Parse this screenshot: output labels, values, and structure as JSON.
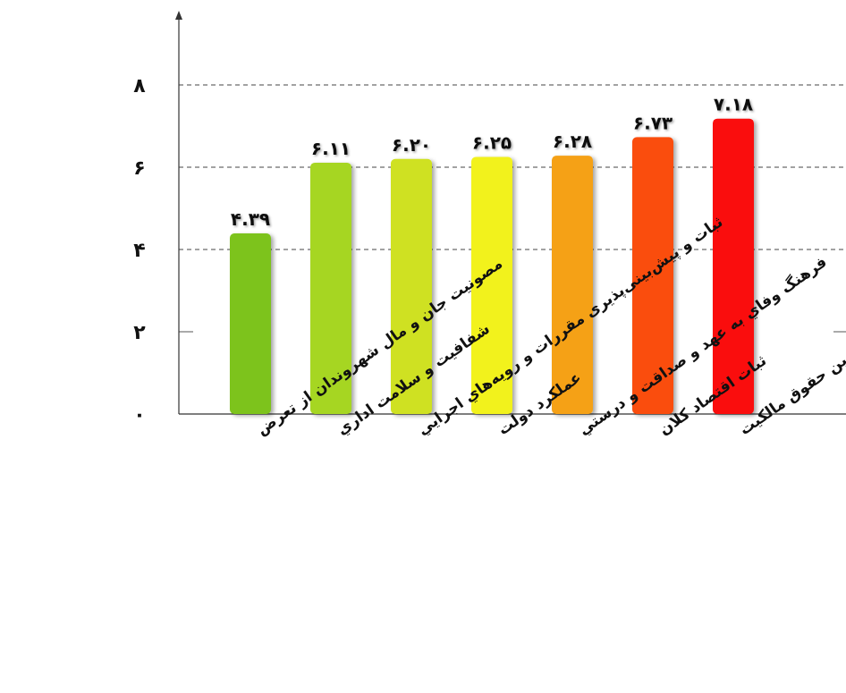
{
  "chart_data": {
    "type": "bar",
    "categories": [
      "مصونیت جان و مال شهروندان از تعرض",
      "شفافیت و سلامت اداري",
      "ثبات و پیش‌بینی‌پذیری مقررات و رویه‌هاي اجرایي",
      "عملکرد دولت",
      "فرهنگ وفاي به عهد و صداقت و درستي",
      "ثبات اقتصاد کلان",
      "تعریف و تضمین حقوق مالکیت"
    ],
    "values": [
      4.39,
      6.11,
      6.2,
      6.25,
      6.28,
      6.73,
      7.18
    ],
    "data_labels": [
      "۴.۳۹",
      "۶.۱۱",
      "۶.۲۰",
      "۶.۲۵",
      "۶.۲۸",
      "۶.۷۳",
      "۷.۱۸"
    ],
    "colors": [
      "#7dc31f",
      "#a6d620",
      "#cfe120",
      "#f2f21f",
      "#f5a114",
      "#fa4e10",
      "#fa0c0c"
    ],
    "y_ticks": [
      0,
      2,
      4,
      6,
      8
    ],
    "y_tick_labels": [
      "۰",
      "۲",
      "۴",
      "۶",
      "۸"
    ],
    "ylim": [
      0,
      10
    ],
    "grid": "dashed at 4, 6, 8",
    "title": "",
    "xlabel": "",
    "ylabel": ""
  }
}
